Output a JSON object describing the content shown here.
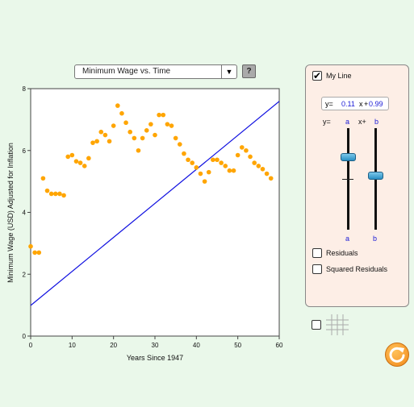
{
  "dropdown": {
    "selected": "Minimum Wage vs. Time",
    "arrow_icon": "triangle-down-icon"
  },
  "help_button": {
    "label": "?"
  },
  "chart_data": {
    "type": "scatter",
    "xlabel": "Years Since 1947",
    "ylabel": "Minimum Wage (USD) Adjusted for Inflation",
    "xlim": [
      0,
      60
    ],
    "ylim": [
      0,
      8
    ],
    "x_ticks": [
      "0",
      "10",
      "20",
      "30",
      "40",
      "50",
      "60"
    ],
    "y_ticks": [
      "0",
      "2",
      "4",
      "6",
      "8"
    ],
    "point_color": "#ffa500",
    "line_color": "#1010e0",
    "points": [
      [
        0,
        2.9
      ],
      [
        1,
        2.7
      ],
      [
        2,
        2.7
      ],
      [
        3,
        5.1
      ],
      [
        4,
        4.7
      ],
      [
        5,
        4.6
      ],
      [
        6,
        4.6
      ],
      [
        7,
        4.6
      ],
      [
        8,
        4.55
      ],
      [
        9,
        5.8
      ],
      [
        10,
        5.85
      ],
      [
        11,
        5.65
      ],
      [
        12,
        5.6
      ],
      [
        13,
        5.5
      ],
      [
        14,
        5.75
      ],
      [
        15,
        6.25
      ],
      [
        16,
        6.3
      ],
      [
        17,
        6.6
      ],
      [
        18,
        6.5
      ],
      [
        19,
        6.3
      ],
      [
        20,
        6.8
      ],
      [
        21,
        7.45
      ],
      [
        22,
        7.2
      ],
      [
        23,
        6.9
      ],
      [
        24,
        6.6
      ],
      [
        25,
        6.4
      ],
      [
        26,
        6.0
      ],
      [
        27,
        6.4
      ],
      [
        28,
        6.65
      ],
      [
        29,
        6.85
      ],
      [
        30,
        6.5
      ],
      [
        31,
        7.15
      ],
      [
        32,
        7.15
      ],
      [
        33,
        6.85
      ],
      [
        34,
        6.8
      ],
      [
        35,
        6.4
      ],
      [
        36,
        6.2
      ],
      [
        37,
        5.9
      ],
      [
        38,
        5.7
      ],
      [
        39,
        5.6
      ],
      [
        40,
        5.45
      ],
      [
        41,
        5.25
      ],
      [
        42,
        5.0
      ],
      [
        43,
        5.3
      ],
      [
        44,
        5.7
      ],
      [
        45,
        5.7
      ],
      [
        46,
        5.6
      ],
      [
        47,
        5.5
      ],
      [
        48,
        5.35
      ],
      [
        49,
        5.35
      ],
      [
        50,
        5.85
      ],
      [
        51,
        6.1
      ],
      [
        52,
        6.0
      ],
      [
        53,
        5.8
      ],
      [
        54,
        5.6
      ],
      [
        55,
        5.5
      ],
      [
        56,
        5.4
      ],
      [
        57,
        5.25
      ],
      [
        58,
        5.1
      ]
    ],
    "line": {
      "slope": 0.11,
      "intercept": 0.99
    }
  },
  "panel": {
    "my_line_label": "My Line",
    "my_line_checked": true,
    "eq_y": "y=",
    "eq_a": "0.11",
    "eq_x": "x",
    "eq_plus": "+",
    "eq_b": "0.99",
    "formula_y": "y=",
    "formula_a": "a",
    "formula_xplus": "x+",
    "formula_b": "b",
    "slider_a_label": "a",
    "slider_b_label": "b",
    "residuals_label": "Residuals",
    "squared_residuals_label": "Squared Residuals"
  },
  "bottom": {
    "grid_icon": "grid-icon",
    "reset_icon": "reset-icon"
  },
  "colors": {
    "background": "#eaf8ea",
    "panel_bg": "#fdeee6",
    "accent_blue": "#1a1ad6",
    "reset_orange": "#f2891a"
  }
}
